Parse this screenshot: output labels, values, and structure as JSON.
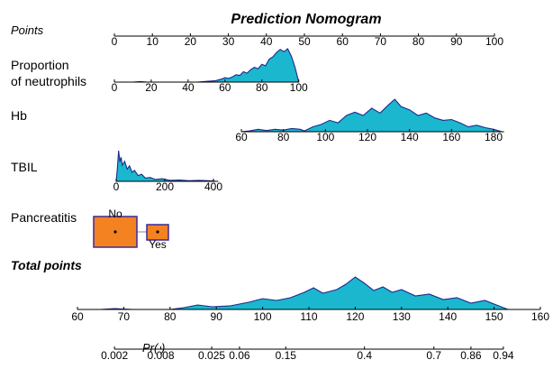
{
  "chart_data": {
    "type": "nomogram",
    "title": "Prediction Nomogram",
    "colors": {
      "density_fill": "#1ab7cf",
      "density_line": "#1f2a8a",
      "box_fill": "#f58220",
      "box_line": "#3a2a9a"
    },
    "points_axis": {
      "label": "Points",
      "range": [
        0,
        100
      ],
      "ticks": [
        0,
        10,
        20,
        30,
        40,
        50,
        60,
        70,
        80,
        90,
        100
      ]
    },
    "variables": [
      {
        "label_lines": [
          "Proportion",
          "of neutrophils"
        ],
        "kind": "continuous",
        "range": [
          0,
          100
        ],
        "ticks": [
          0,
          20,
          40,
          60,
          80,
          100
        ],
        "density": [
          [
            0,
            0
          ],
          [
            10,
            0
          ],
          [
            14,
            1.5
          ],
          [
            18,
            0
          ],
          [
            45,
            0
          ],
          [
            50,
            2
          ],
          [
            55,
            4
          ],
          [
            58,
            8
          ],
          [
            60,
            12
          ],
          [
            62,
            10
          ],
          [
            64,
            14
          ],
          [
            66,
            20
          ],
          [
            68,
            18
          ],
          [
            70,
            28
          ],
          [
            72,
            24
          ],
          [
            74,
            34
          ],
          [
            76,
            40
          ],
          [
            78,
            36
          ],
          [
            80,
            48
          ],
          [
            82,
            44
          ],
          [
            84,
            62
          ],
          [
            86,
            68
          ],
          [
            88,
            80
          ],
          [
            90,
            88
          ],
          [
            92,
            82
          ],
          [
            94,
            90
          ],
          [
            96,
            70
          ],
          [
            98,
            40
          ],
          [
            100,
            0
          ]
        ]
      },
      {
        "label_lines": [
          "Hb"
        ],
        "kind": "continuous",
        "range": [
          60,
          185
        ],
        "ticks": [
          60,
          80,
          100,
          120,
          140,
          160,
          180
        ],
        "density": [
          [
            60,
            0
          ],
          [
            64,
            2
          ],
          [
            68,
            6
          ],
          [
            72,
            3
          ],
          [
            76,
            6
          ],
          [
            80,
            4
          ],
          [
            84,
            8
          ],
          [
            88,
            6
          ],
          [
            90,
            2
          ],
          [
            94,
            12
          ],
          [
            98,
            18
          ],
          [
            102,
            28
          ],
          [
            106,
            22
          ],
          [
            110,
            40
          ],
          [
            114,
            48
          ],
          [
            118,
            40
          ],
          [
            122,
            58
          ],
          [
            126,
            46
          ],
          [
            130,
            66
          ],
          [
            133,
            80
          ],
          [
            136,
            62
          ],
          [
            140,
            54
          ],
          [
            144,
            40
          ],
          [
            148,
            46
          ],
          [
            152,
            34
          ],
          [
            156,
            28
          ],
          [
            160,
            30
          ],
          [
            164,
            22
          ],
          [
            168,
            12
          ],
          [
            172,
            16
          ],
          [
            176,
            10
          ],
          [
            180,
            6
          ],
          [
            184,
            0
          ]
        ]
      },
      {
        "label_lines": [
          "TBIL"
        ],
        "kind": "continuous",
        "range": [
          0,
          420
        ],
        "ticks": [
          0,
          200,
          400
        ],
        "density": [
          [
            0,
            0
          ],
          [
            5,
            40
          ],
          [
            10,
            95
          ],
          [
            15,
            60
          ],
          [
            20,
            75
          ],
          [
            25,
            50
          ],
          [
            35,
            62
          ],
          [
            45,
            38
          ],
          [
            55,
            48
          ],
          [
            65,
            28
          ],
          [
            75,
            34
          ],
          [
            90,
            18
          ],
          [
            105,
            22
          ],
          [
            120,
            10
          ],
          [
            140,
            12
          ],
          [
            160,
            6
          ],
          [
            190,
            8
          ],
          [
            220,
            3
          ],
          [
            260,
            4
          ],
          [
            300,
            2
          ],
          [
            340,
            3
          ],
          [
            380,
            2
          ],
          [
            400,
            1
          ],
          [
            410,
            0
          ]
        ]
      },
      {
        "label_lines": [
          "Pancreatitis"
        ],
        "kind": "categorical",
        "categories": [
          "No",
          "Yes"
        ]
      }
    ],
    "total_points_axis": {
      "label": "Total points",
      "range": [
        60,
        160
      ],
      "ticks": [
        60,
        70,
        80,
        90,
        100,
        110,
        120,
        130,
        140,
        150,
        160
      ],
      "density": [
        [
          60,
          0
        ],
        [
          65,
          0
        ],
        [
          68,
          2
        ],
        [
          72,
          0
        ],
        [
          80,
          0
        ],
        [
          83,
          4
        ],
        [
          86,
          10
        ],
        [
          89,
          6
        ],
        [
          93,
          8
        ],
        [
          97,
          16
        ],
        [
          100,
          24
        ],
        [
          103,
          20
        ],
        [
          106,
          26
        ],
        [
          109,
          38
        ],
        [
          111,
          48
        ],
        [
          113,
          36
        ],
        [
          116,
          44
        ],
        [
          118,
          56
        ],
        [
          120,
          72
        ],
        [
          122,
          58
        ],
        [
          124,
          42
        ],
        [
          126,
          50
        ],
        [
          128,
          38
        ],
        [
          130,
          44
        ],
        [
          133,
          30
        ],
        [
          136,
          34
        ],
        [
          139,
          22
        ],
        [
          142,
          26
        ],
        [
          145,
          14
        ],
        [
          148,
          20
        ],
        [
          151,
          8
        ],
        [
          153,
          0
        ]
      ]
    },
    "probability_axis": {
      "label": "Pr( )",
      "tick_labels": [
        "0.002",
        "0.008",
        "0.025",
        "0.06",
        "0.15",
        "0.4",
        "0.7",
        "0.86",
        "0.94"
      ],
      "tick_total_points": [
        68,
        78,
        89,
        95,
        105,
        122,
        137,
        145,
        152
      ]
    }
  }
}
